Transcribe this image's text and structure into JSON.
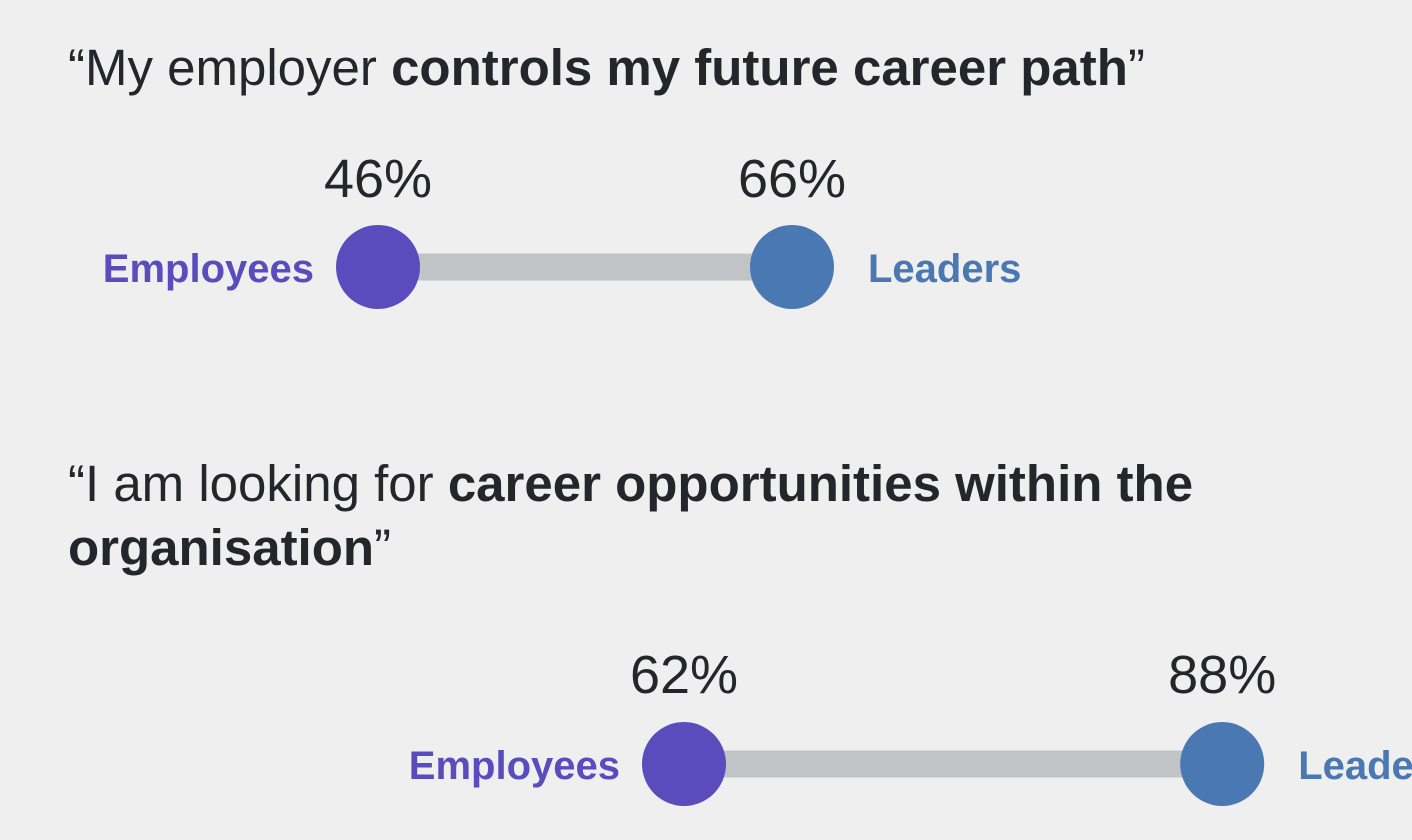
{
  "colors": {
    "background": "#efefef",
    "employees": "#5c4bbd",
    "leaders": "#4a78b2",
    "connector": "#c2c3c7",
    "text": "#25262b"
  },
  "chart_data": [
    {
      "type": "dumbbell",
      "statement": {
        "open_quote": "“",
        "plain": "My employer ",
        "bold": "controls my future career path",
        "close_quote": "”"
      },
      "series": [
        {
          "name": "Employees",
          "value": 46,
          "label": "46%"
        },
        {
          "name": "Leaders",
          "value": 66,
          "label": "66%"
        }
      ]
    },
    {
      "type": "dumbbell",
      "statement": {
        "open_quote": "“",
        "plain": "I am looking for ",
        "bold": "career opportunities within the organisation",
        "close_quote": "”"
      },
      "series": [
        {
          "name": "Employees",
          "value": 62,
          "label": "62%"
        },
        {
          "name": "Leaders",
          "value": 88,
          "label": "88%"
        }
      ]
    }
  ]
}
